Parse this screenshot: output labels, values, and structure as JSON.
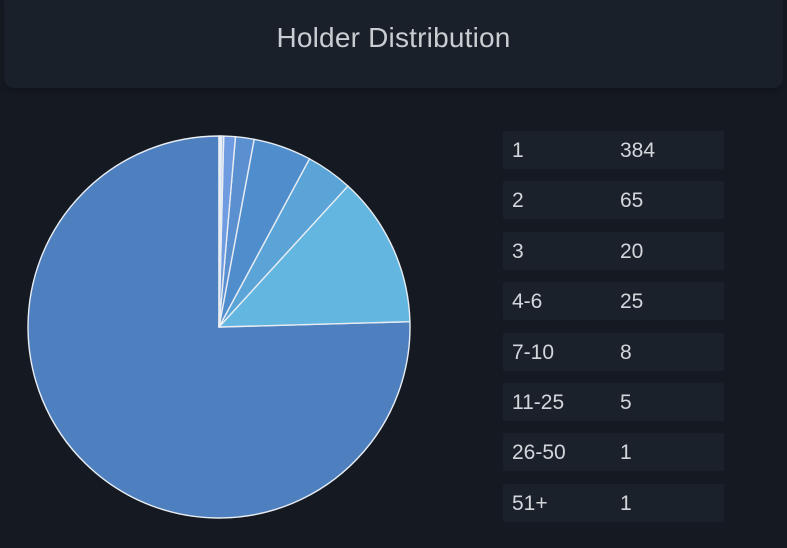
{
  "header": {
    "title": "Holder Distribution"
  },
  "chart_data": {
    "type": "pie",
    "title": "Holder Distribution",
    "categories": [
      "1",
      "2",
      "3",
      "4-6",
      "7-10",
      "11-25",
      "26-50",
      "51+"
    ],
    "values": [
      384,
      65,
      20,
      25,
      8,
      5,
      1,
      1
    ],
    "colors": [
      "#4e7fbf",
      "#62b6e0",
      "#5aa4d8",
      "#4f8dcc",
      "#5a8fd0",
      "#6f9be0",
      "#a9c3ef",
      "#e6eefc"
    ],
    "slice_border_color": "#e8edf3",
    "start": "top",
    "direction": "counterclockwise",
    "legend_position": "right"
  },
  "legend": {
    "rows": [
      {
        "label": "1",
        "value": "384"
      },
      {
        "label": "2",
        "value": "65"
      },
      {
        "label": "3",
        "value": "20"
      },
      {
        "label": "4-6",
        "value": "25"
      },
      {
        "label": "7-10",
        "value": "8"
      },
      {
        "label": "11-25",
        "value": "5"
      },
      {
        "label": "26-50",
        "value": "1"
      },
      {
        "label": "51+",
        "value": "1"
      }
    ]
  }
}
